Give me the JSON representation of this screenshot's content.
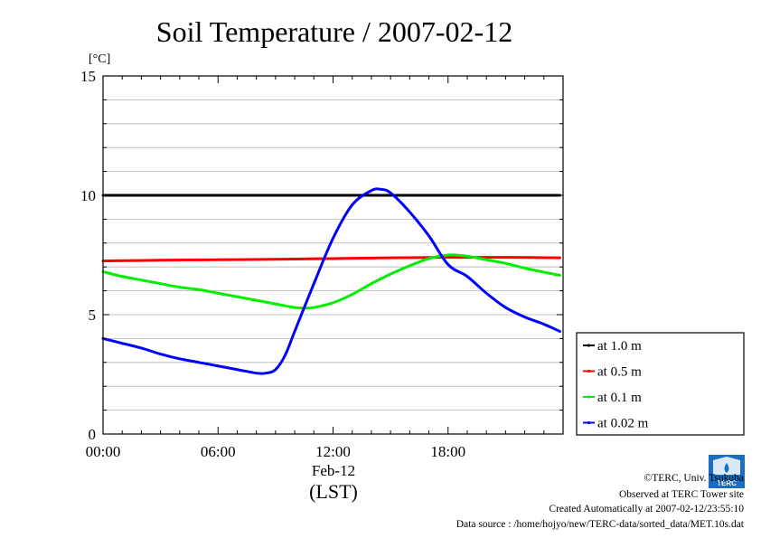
{
  "chart_data": {
    "type": "line",
    "title": "Soil Temperature / 2007-02-12",
    "ylabel": "[°C]",
    "xlabel": "(LST)",
    "x_date_label": "Feb-12",
    "xlim": [
      "00:00",
      "24:00"
    ],
    "ylim": [
      0,
      15
    ],
    "x_ticks": [
      "00:00",
      "06:00",
      "12:00",
      "18:00"
    ],
    "y_ticks": [
      "0",
      "5",
      "10",
      "15"
    ],
    "grid": "horizontal",
    "legend_position": "right",
    "series": [
      {
        "name": "at 1.0 m",
        "color": "#000000",
        "x": [
          "00:00",
          "06:00",
          "12:00",
          "18:00",
          "23:50"
        ],
        "values": [
          10.0,
          10.0,
          10.0,
          10.0,
          10.0
        ]
      },
      {
        "name": "at 0.5 m",
        "color": "#ff0000",
        "x": [
          "00:00",
          "03:00",
          "06:00",
          "09:00",
          "12:00",
          "15:00",
          "18:00",
          "21:00",
          "23:50"
        ],
        "values": [
          7.25,
          7.28,
          7.3,
          7.32,
          7.35,
          7.38,
          7.4,
          7.4,
          7.38
        ]
      },
      {
        "name": "at 0.1 m",
        "color": "#00ee00",
        "x": [
          "00:00",
          "01:00",
          "02:00",
          "03:00",
          "04:00",
          "05:00",
          "06:00",
          "07:00",
          "08:00",
          "09:00",
          "10:00",
          "10:30",
          "11:00",
          "12:00",
          "13:00",
          "14:00",
          "15:00",
          "16:00",
          "17:00",
          "18:00",
          "19:00",
          "20:00",
          "21:00",
          "22:00",
          "23:00",
          "23:50"
        ],
        "values": [
          6.8,
          6.6,
          6.45,
          6.3,
          6.15,
          6.05,
          5.9,
          5.75,
          5.6,
          5.45,
          5.3,
          5.28,
          5.3,
          5.5,
          5.85,
          6.3,
          6.7,
          7.05,
          7.35,
          7.5,
          7.45,
          7.3,
          7.15,
          6.95,
          6.78,
          6.65
        ]
      },
      {
        "name": "at 0.02 m",
        "color": "#0000ff",
        "x": [
          "00:00",
          "01:00",
          "02:00",
          "03:00",
          "04:00",
          "05:00",
          "06:00",
          "07:00",
          "08:00",
          "08:30",
          "09:00",
          "09:30",
          "10:00",
          "11:00",
          "12:00",
          "13:00",
          "14:00",
          "14:30",
          "15:00",
          "16:00",
          "17:00",
          "18:00",
          "19:00",
          "20:00",
          "21:00",
          "22:00",
          "23:00",
          "23:50"
        ],
        "values": [
          4.0,
          3.8,
          3.6,
          3.35,
          3.15,
          3.0,
          2.85,
          2.7,
          2.55,
          2.55,
          2.7,
          3.3,
          4.3,
          6.3,
          8.2,
          9.6,
          10.2,
          10.25,
          10.1,
          9.3,
          8.3,
          7.1,
          6.6,
          5.9,
          5.3,
          4.9,
          4.6,
          4.3
        ]
      }
    ]
  },
  "credits": {
    "copyright": "©TERC, Univ. Tsukuba",
    "observed": "Observed at TERC Tower site",
    "created": "Created Automatically at 2007-02-12/23:55:10",
    "source": "Data source : /home/hojyo/new/TERC-data/sorted_data/MET.10s.dat",
    "logo_text": "TERC"
  }
}
